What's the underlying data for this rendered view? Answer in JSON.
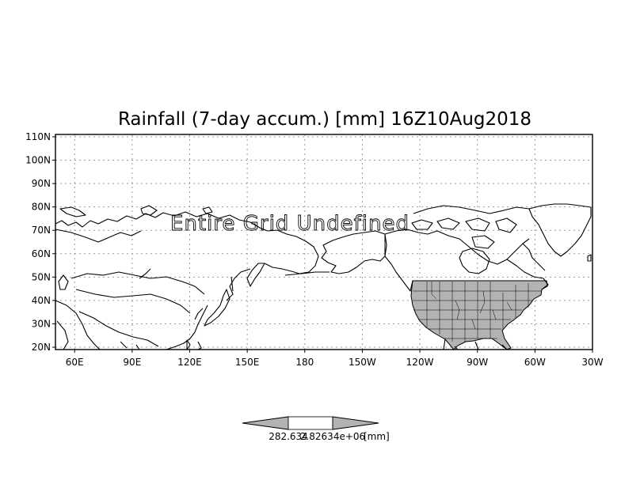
{
  "map": {
    "title": "Rainfall (7-day accum.) [mm] 16Z10Aug2018",
    "overlay_text": "Entire Grid Undefined",
    "lat_ticks": [
      "20N",
      "30N",
      "40N",
      "50N",
      "60N",
      "70N",
      "80N",
      "90N",
      "100N",
      "110N"
    ],
    "lon_ticks": [
      "60E",
      "90E",
      "120E",
      "150E",
      "180",
      "150W",
      "120W",
      "90W",
      "60W",
      "30W"
    ],
    "lat_values": [
      20,
      30,
      40,
      50,
      60,
      70,
      80,
      90,
      100,
      110
    ],
    "lon_values": [
      60,
      90,
      120,
      150,
      180,
      210,
      240,
      270,
      300,
      330
    ],
    "lon_range": [
      50,
      330
    ],
    "lat_range": [
      19,
      111
    ],
    "filled_color": "#b3b3b3",
    "grid": true
  },
  "colorbar": {
    "label_left": "282.634",
    "label_mid": "2.82634e+06",
    "unit": "[mm]",
    "bar_color": "#ffffff",
    "arrow_color": "#b3b3b3"
  }
}
